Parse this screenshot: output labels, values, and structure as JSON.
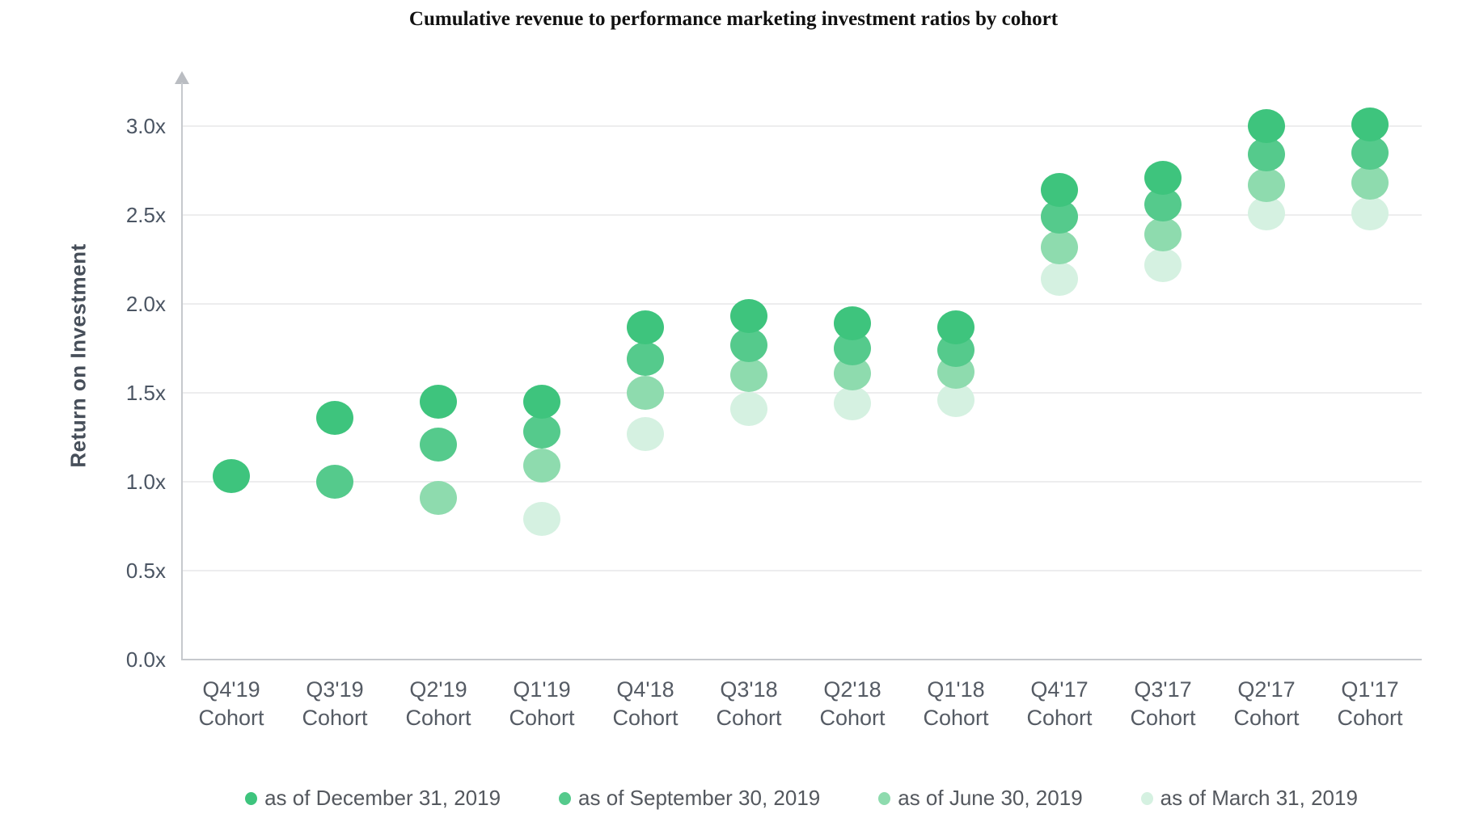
{
  "page": {
    "title": "Cumulative revenue to performance marketing investment ratios by cohort"
  },
  "chart_data": {
    "type": "scatter",
    "title": "Cumulative revenue to performance marketing investment ratios by cohort",
    "xlabel": "",
    "ylabel": "Return on Investment",
    "ylim": [
      0.0,
      3.2
    ],
    "ytick_labels": [
      "3.0x",
      "2.5x",
      "2.0x",
      "1.5x",
      "1.0x",
      "0.5x",
      "0.0x"
    ],
    "ytick_values": [
      3.0,
      2.5,
      2.0,
      1.5,
      1.0,
      0.5,
      0.0
    ],
    "grid": true,
    "legend_position": "bottom",
    "categories": [
      "Q4'19",
      "Q3'19",
      "Q2'19",
      "Q1'19",
      "Q4'18",
      "Q3'18",
      "Q2'18",
      "Q1'18",
      "Q4'17",
      "Q3'17",
      "Q2'17",
      "Q1'17"
    ],
    "category_line2": "Cohort",
    "series": [
      {
        "name": "as of December 31, 2019",
        "color": "#3ec47d",
        "values": [
          1.03,
          1.36,
          1.45,
          1.45,
          1.87,
          1.93,
          1.89,
          1.87,
          2.64,
          2.71,
          3.0,
          3.01
        ]
      },
      {
        "name": "as of September 30, 2019",
        "color": "#55ca8c",
        "values": [
          null,
          1.0,
          1.21,
          1.28,
          1.69,
          1.77,
          1.75,
          1.74,
          2.49,
          2.56,
          2.84,
          2.85
        ]
      },
      {
        "name": "as of June 30, 2019",
        "color": "#8edbae",
        "values": [
          null,
          null,
          0.91,
          1.09,
          1.5,
          1.6,
          1.61,
          1.62,
          2.32,
          2.39,
          2.67,
          2.68
        ]
      },
      {
        "name": "as of March 31, 2019",
        "color": "#d5f1e1",
        "values": [
          null,
          null,
          null,
          0.79,
          1.27,
          1.41,
          1.44,
          1.46,
          2.14,
          2.22,
          2.51,
          2.51
        ]
      }
    ],
    "colors": {
      "axis_line": "#c6c9cd",
      "gridline": "#ededee",
      "tick_text": "#4b5563",
      "label_text": "#555b64",
      "legend_text": "#54585e",
      "title_text": "#111111"
    }
  }
}
